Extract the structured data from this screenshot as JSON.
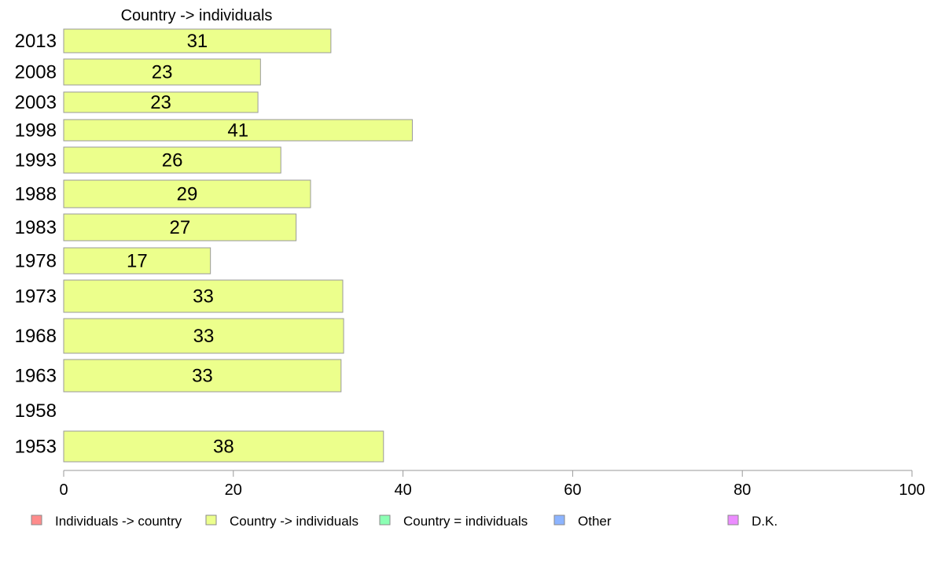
{
  "chart_data": {
    "type": "bar",
    "orientation": "horizontal",
    "title": "",
    "series_label": "Country -> individuals",
    "categories": [
      "2013",
      "2008",
      "2003",
      "1998",
      "1993",
      "1988",
      "1983",
      "1978",
      "1973",
      "1968",
      "1963",
      "1958",
      "1953"
    ],
    "series": [
      {
        "name": "Country -> individuals",
        "values": [
          31.5,
          23.2,
          22.9,
          41.1,
          25.6,
          29.1,
          27.4,
          17.3,
          32.9,
          33.0,
          32.7,
          null,
          37.7
        ],
        "labels": [
          "31",
          "23",
          "23",
          "41",
          "26",
          "29",
          "27",
          "17",
          "33",
          "33",
          "33",
          "",
          "38"
        ]
      }
    ],
    "xlim": [
      0,
      100
    ],
    "xticks": [
      "0",
      "20",
      "40",
      "60",
      "80",
      "100"
    ],
    "grid": false,
    "legend_position": "bottom",
    "legend": [
      {
        "label": "Individuals -> country",
        "color": "#ff8c8c"
      },
      {
        "label": "Country -> individuals",
        "color": "#ecff8c"
      },
      {
        "label": "Country = individuals",
        "color": "#8cffb4"
      },
      {
        "label": "Other",
        "color": "#8cb4ff"
      },
      {
        "label": "D.K.",
        "color": "#ec8cff"
      }
    ],
    "bar_color": "#ecff8c",
    "bar_stroke": "#9a9a9a"
  }
}
